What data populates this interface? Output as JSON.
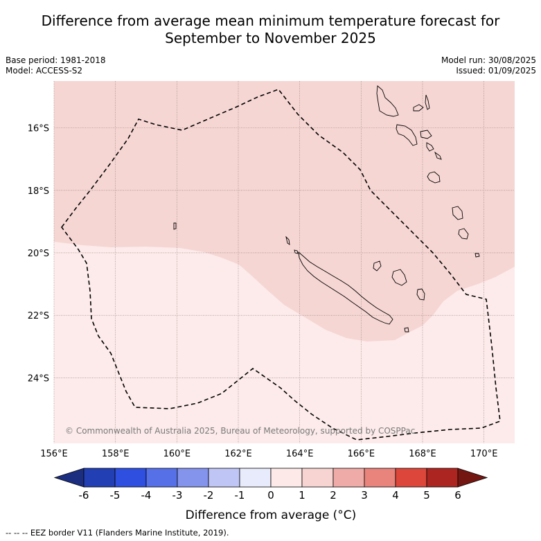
{
  "header": {
    "title_line1": "Difference from average mean minimum temperature forecast for",
    "title_line2": "September to November 2025"
  },
  "meta": {
    "base_period": "Base period: 1981-2018",
    "model": "Model: ACCESS-S2",
    "model_run": "Model run: 30/08/2025",
    "issued": "Issued: 01/09/2025"
  },
  "map": {
    "lat_labels": [
      "16°S",
      "18°S",
      "20°S",
      "22°S",
      "24°S"
    ],
    "lon_labels": [
      "156°E",
      "158°E",
      "160°E",
      "162°E",
      "164°E",
      "166°E",
      "168°E",
      "170°E"
    ],
    "lat_values": [
      -16,
      -18,
      -20,
      -22,
      -24
    ],
    "lon_values": [
      156,
      158,
      160,
      162,
      164,
      166,
      168,
      170
    ],
    "extent": {
      "lon_min": 156,
      "lon_max": 171,
      "lat_min": -26.1,
      "lat_max": -14.5
    },
    "copyright": "© Commonwealth of Australia 2025, Bureau of Meteorology, supported by COSPPac",
    "colors": {
      "anomaly_1_to_2": "#f5d6d3",
      "anomaly_0_to_1": "#fcebea"
    }
  },
  "colorbar": {
    "ticks": [
      "-6",
      "-5",
      "-4",
      "-3",
      "-2",
      "-1",
      "0",
      "1",
      "2",
      "3",
      "4",
      "5",
      "6"
    ],
    "colors": [
      "#1c2e80",
      "#223fb3",
      "#2f4fe0",
      "#5670e8",
      "#8494ec",
      "#bfc6f5",
      "#e8ebfb",
      "#fdeae8",
      "#f7d4d2",
      "#efaba7",
      "#e8847c",
      "#dc463b",
      "#ac2520",
      "#741612"
    ],
    "label": "Difference from average (°C)"
  },
  "footnote": "-- -- -- EEZ border V11 (Flanders Marine Institute, 2019)."
}
